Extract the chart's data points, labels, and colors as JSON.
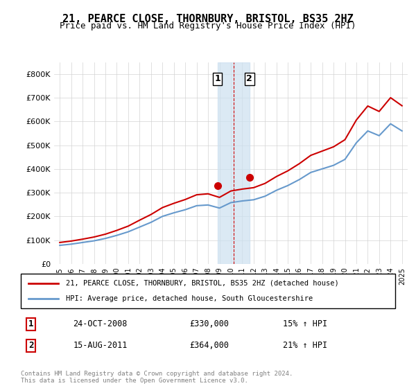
{
  "title": "21, PEARCE CLOSE, THORNBURY, BRISTOL, BS35 2HZ",
  "subtitle": "Price paid vs. HM Land Registry's House Price Index (HPI)",
  "title_fontsize": 12,
  "subtitle_fontsize": 10,
  "ylabel_ticks": [
    "£0",
    "£100K",
    "£200K",
    "£300K",
    "£400K",
    "£500K",
    "£600K",
    "£700K",
    "£800K"
  ],
  "ytick_values": [
    0,
    100000,
    200000,
    300000,
    400000,
    500000,
    600000,
    700000,
    800000
  ],
  "ylim": [
    0,
    850000
  ],
  "xlim_start": 1995.0,
  "xlim_end": 2025.5,
  "legend_line1": "21, PEARCE CLOSE, THORNBURY, BRISTOL, BS35 2HZ (detached house)",
  "legend_line2": "HPI: Average price, detached house, South Gloucestershire",
  "transaction1_label": "1",
  "transaction1_date": "24-OCT-2008",
  "transaction1_price": "£330,000",
  "transaction1_hpi": "15% ↑ HPI",
  "transaction2_label": "2",
  "transaction2_date": "15-AUG-2011",
  "transaction2_price": "£364,000",
  "transaction2_hpi": "21% ↑ HPI",
  "footer": "Contains HM Land Registry data © Crown copyright and database right 2024.\nThis data is licensed under the Open Government Licence v3.0.",
  "red_color": "#cc0000",
  "blue_color": "#6699cc",
  "shade_color": "#cce0f0",
  "marker_color": "#cc0000",
  "transaction1_x": 2008.82,
  "transaction2_x": 2011.62,
  "hpi_years": [
    1995,
    1996,
    1997,
    1998,
    1999,
    2000,
    2001,
    2002,
    2003,
    2004,
    2005,
    2006,
    2007,
    2008,
    2009,
    2010,
    2011,
    2012,
    2013,
    2014,
    2015,
    2016,
    2017,
    2018,
    2019,
    2020,
    2021,
    2022,
    2023,
    2024,
    2025
  ],
  "hpi_values": [
    78000,
    83000,
    90000,
    97000,
    107000,
    120000,
    135000,
    155000,
    175000,
    200000,
    215000,
    228000,
    245000,
    248000,
    235000,
    258000,
    265000,
    270000,
    285000,
    310000,
    330000,
    355000,
    385000,
    400000,
    415000,
    440000,
    510000,
    560000,
    540000,
    590000,
    560000
  ],
  "price_years": [
    1995,
    1996,
    1997,
    1998,
    1999,
    2000,
    2001,
    2002,
    2003,
    2004,
    2005,
    2006,
    2007,
    2008,
    2009,
    2010,
    2011,
    2012,
    2013,
    2014,
    2015,
    2016,
    2017,
    2018,
    2019,
    2020,
    2021,
    2022,
    2023,
    2024,
    2025
  ],
  "price_values": [
    90000,
    96000,
    104000,
    113000,
    125000,
    141000,
    159000,
    184000,
    208000,
    237000,
    255000,
    271000,
    291000,
    295000,
    280000,
    307000,
    315000,
    321000,
    339000,
    368000,
    392000,
    422000,
    457000,
    475000,
    493000,
    523000,
    606000,
    665000,
    642000,
    700000,
    666000
  ]
}
